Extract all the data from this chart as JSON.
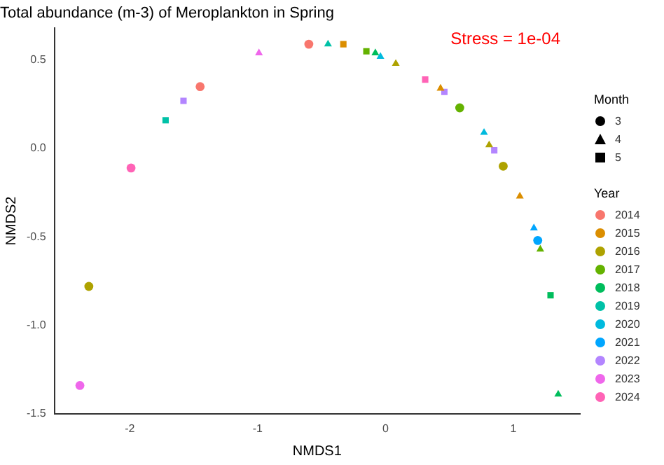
{
  "chart_data": {
    "type": "scatter",
    "title": "Total abundance (m-3) of Meroplankton in Spring",
    "xlabel": "NMDS1",
    "ylabel": "NMDS2",
    "legend_title": "Year",
    "annotations": [
      "Stress = 1e-04",
      "Month"
    ],
    "xlim": [
      -2.59,
      1.52
    ],
    "xticks": [
      -2,
      -1,
      0,
      1
    ],
    "ylim": [
      -1.5,
      0.68
    ],
    "yticks": [
      {
        "value": -1.5,
        "label": "-1.5"
      },
      {
        "value": -1,
        "label": "-1.0"
      },
      {
        "value": -0.5,
        "label": "-0.5"
      },
      {
        "value": 0,
        "label": "0.0"
      },
      {
        "value": 0.5,
        "label": "0.5"
      }
    ],
    "grid": false,
    "legend": "right",
    "series": [
      {
        "name": "3",
        "color": "#000000",
        "marker": "circle"
      },
      {
        "name": "4",
        "color": "#000000",
        "marker": "triangle"
      },
      {
        "name": "5",
        "color": "#000000",
        "marker": "square"
      },
      {
        "name": "2014",
        "color": "#f8766d",
        "marker": "circle",
        "x": [
          -1.45,
          -0.6
        ],
        "values": [
          0.35,
          0.59
        ]
      },
      {
        "name": "2015",
        "color": "#db8e00",
        "marker": "square",
        "x": [
          -0.33
        ],
        "values": [
          0.59
        ]
      },
      {
        "color": "#db8e00",
        "marker": "triangle",
        "x": [
          0.43,
          1.05
        ],
        "values": [
          0.34,
          -0.27
        ]
      },
      {
        "name": "2016",
        "color": "#aea200",
        "marker": "triangle",
        "x": [
          0.08,
          0.81
        ],
        "values": [
          0.48,
          0.02
        ]
      },
      {
        "color": "#aea200",
        "marker": "circle",
        "x": [
          0.92,
          -2.32
        ],
        "values": [
          -0.1,
          -0.78
        ]
      },
      {
        "name": "2017",
        "color": "#64b200",
        "marker": "square",
        "x": [
          -0.15
        ],
        "values": [
          0.55
        ]
      },
      {
        "color": "#64b200",
        "marker": "circle",
        "x": [
          0.58
        ],
        "values": [
          0.23
        ]
      },
      {
        "color": "#64b200",
        "marker": "triangle",
        "x": [
          1.21
        ],
        "values": [
          -0.57
        ]
      },
      {
        "name": "2018",
        "color": "#00bd5c",
        "marker": "triangle",
        "x": [
          -0.08,
          1.35
        ],
        "values": [
          0.54,
          -1.39
        ]
      },
      {
        "color": "#00bd5c",
        "marker": "square",
        "x": [
          1.29
        ],
        "values": [
          -0.83
        ]
      },
      {
        "name": "2019",
        "color": "#00c1a7",
        "marker": "square",
        "x": [
          -1.72
        ],
        "values": [
          0.16
        ]
      },
      {
        "color": "#00c1a7",
        "marker": "triangle",
        "x": [
          -0.45
        ],
        "values": [
          0.59
        ]
      },
      {
        "name": "2020",
        "color": "#00bade",
        "marker": "triangle",
        "x": [
          -0.04,
          0.77
        ],
        "values": [
          0.52,
          0.09
        ]
      },
      {
        "name": "2021",
        "color": "#00a6ff",
        "marker": "triangle",
        "x": [
          1.16
        ],
        "values": [
          -0.45
        ]
      },
      {
        "color": "#00a6ff",
        "marker": "circle",
        "x": [
          1.19
        ],
        "values": [
          -0.52
        ]
      },
      {
        "name": "2022",
        "color": "#b385ff",
        "marker": "square",
        "x": [
          -1.58,
          0.85,
          0.46
        ],
        "values": [
          0.27,
          -0.01,
          0.32
        ]
      },
      {
        "name": "2023",
        "color": "#ef67eb",
        "marker": "triangle",
        "x": [
          -0.99
        ],
        "values": [
          0.54
        ]
      },
      {
        "color": "#ef67eb",
        "marker": "circle",
        "x": [
          -2.39
        ],
        "values": [
          -1.34
        ]
      },
      {
        "name": "2024",
        "color": "#ff63b6",
        "marker": "circle",
        "x": [
          -1.99
        ],
        "values": [
          -0.11
        ]
      },
      {
        "color": "#ff63b6",
        "marker": "square",
        "x": [
          0.31
        ],
        "values": [
          0.39
        ]
      }
    ]
  }
}
